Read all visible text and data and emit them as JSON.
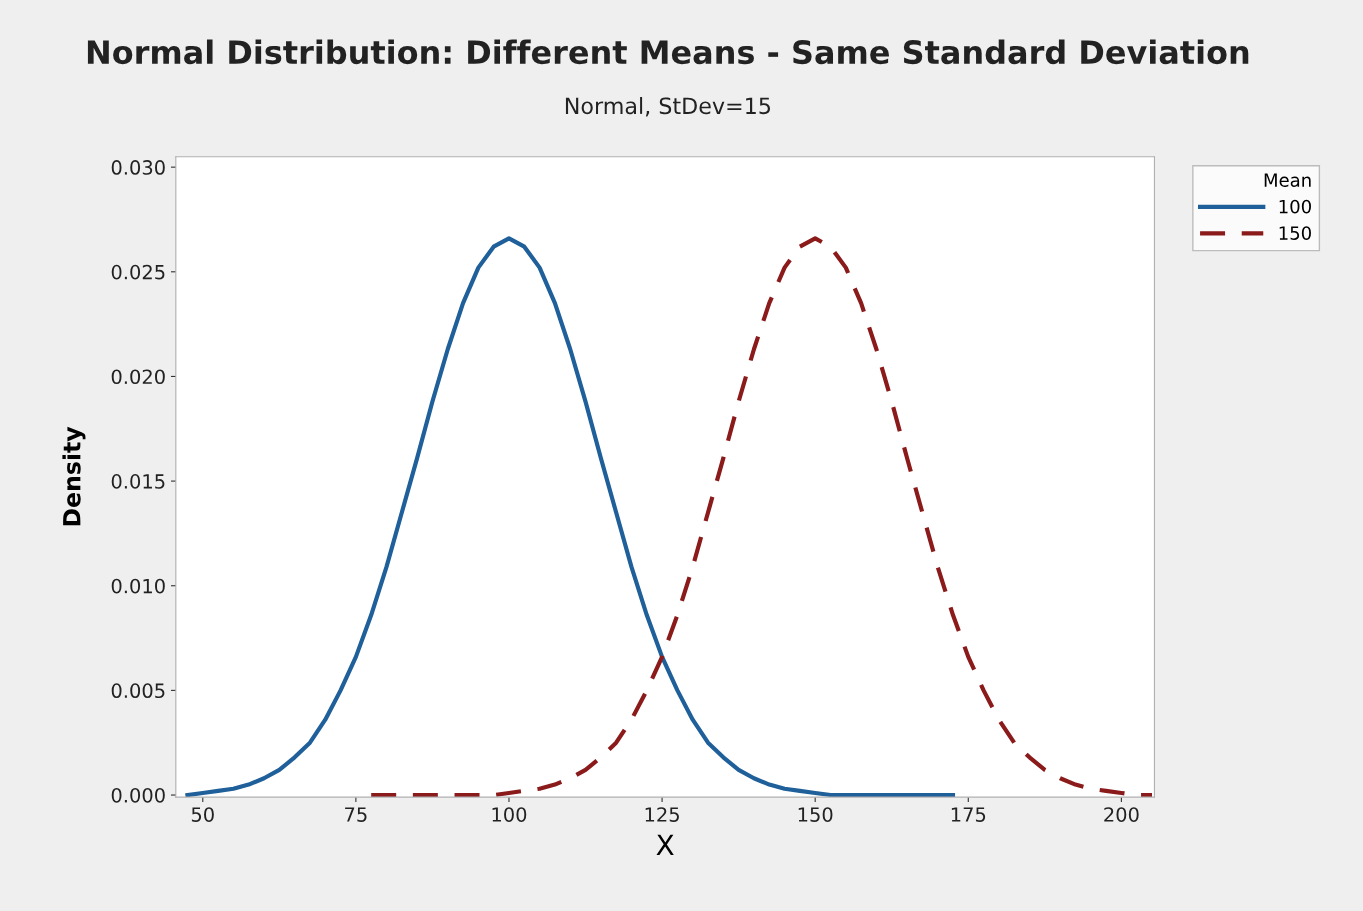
{
  "chart_data": {
    "type": "line",
    "title": "Normal Distribution: Different Means - Same Standard Deviation",
    "subtitle": "Normal, StDev=15",
    "xlabel": "X",
    "ylabel": "Density",
    "legend_title": "Mean",
    "legend": "top right",
    "grid": false,
    "xlim": [
      45.6,
      205.4
    ],
    "xticks": [
      50,
      75,
      100,
      125,
      150,
      175,
      200
    ],
    "ylim": [
      -0.0001,
      0.0305
    ],
    "yticks": [
      {
        "value": 0,
        "label": "0.000"
      },
      {
        "value": 0.005,
        "label": "0.005"
      },
      {
        "value": 0.01,
        "label": "0.010"
      },
      {
        "value": 0.015,
        "label": "0.015"
      },
      {
        "value": 0.02,
        "label": "0.020"
      },
      {
        "value": 0.025,
        "label": "0.025"
      },
      {
        "value": 0.03,
        "label": "0.030"
      }
    ],
    "series": [
      {
        "name": "100",
        "color": "#1f5f9a",
        "line_style": "solid",
        "x": [
          47.5,
          50,
          52.5,
          55,
          57.5,
          60,
          62.5,
          65,
          67.5,
          70,
          72.5,
          75,
          77.5,
          80,
          82.5,
          85,
          87.5,
          90,
          92.5,
          95,
          97.5,
          100,
          102.5,
          105,
          107.5,
          110,
          112.5,
          115,
          117.5,
          120,
          122.5,
          125,
          127.5,
          130,
          132.5,
          135,
          137.5,
          140,
          142.5,
          145,
          147.5,
          150,
          152.5,
          155,
          157.5,
          160,
          162.5,
          165,
          167.5,
          170,
          172.5
        ],
        "values": [
          0,
          0.0001,
          0.0002,
          0.0003,
          0.0005,
          0.0008,
          0.0012,
          0.0018,
          0.0025,
          0.0036,
          0.005,
          0.0066,
          0.0086,
          0.0109,
          0.0135,
          0.0161,
          0.0188,
          0.0213,
          0.0235,
          0.0252,
          0.0262,
          0.0266,
          0.0262,
          0.0252,
          0.0235,
          0.0213,
          0.0188,
          0.0161,
          0.0135,
          0.0109,
          0.0086,
          0.0066,
          0.005,
          0.0036,
          0.0025,
          0.0018,
          0.0012,
          0.0008,
          0.0005,
          0.0003,
          0.0002,
          0.0001,
          0,
          0,
          0,
          0,
          0,
          0,
          0,
          0,
          0
        ]
      },
      {
        "name": "150",
        "color": "#8b1a1a",
        "line_style": "dashed",
        "x": [
          77.5,
          80,
          82.5,
          85,
          87.5,
          90,
          92.5,
          95,
          97.5,
          100,
          102.5,
          105,
          107.5,
          110,
          112.5,
          115,
          117.5,
          120,
          122.5,
          125,
          127.5,
          130,
          132.5,
          135,
          137.5,
          140,
          142.5,
          145,
          147.5,
          150,
          152.5,
          155,
          157.5,
          160,
          162.5,
          165,
          167.5,
          170,
          172.5,
          175,
          177.5,
          180,
          182.5,
          185,
          187.5,
          190,
          192.5,
          195,
          197.5,
          200,
          202.5,
          205
        ],
        "values": [
          0,
          0,
          0,
          0,
          0,
          0,
          0,
          0,
          0,
          0.0001,
          0.0002,
          0.0003,
          0.0005,
          0.0008,
          0.0012,
          0.0018,
          0.0025,
          0.0036,
          0.005,
          0.0066,
          0.0086,
          0.0109,
          0.0135,
          0.0161,
          0.0188,
          0.0213,
          0.0235,
          0.0252,
          0.0262,
          0.0266,
          0.0262,
          0.0252,
          0.0235,
          0.0213,
          0.0188,
          0.0161,
          0.0135,
          0.0109,
          0.0086,
          0.0066,
          0.005,
          0.0036,
          0.0025,
          0.0018,
          0.0012,
          0.0008,
          0.0005,
          0.0003,
          0.0002,
          0.0001,
          0,
          0
        ]
      }
    ]
  }
}
